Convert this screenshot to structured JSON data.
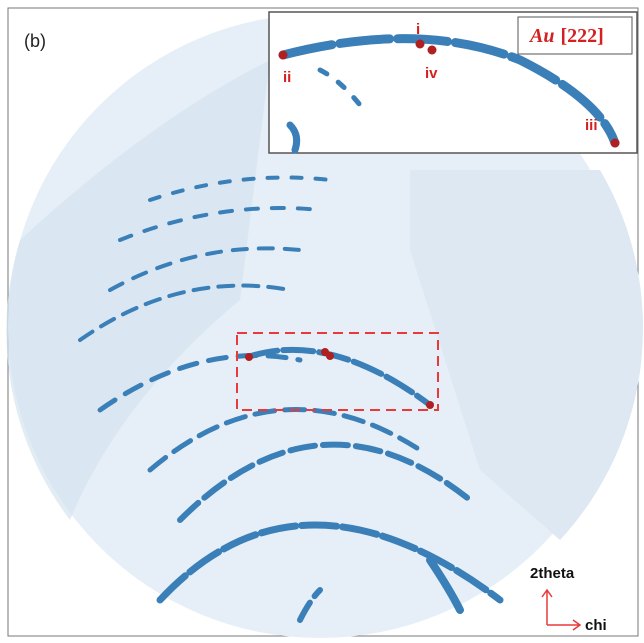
{
  "panel_label": "(b)",
  "inset": {
    "element": "Au",
    "reflection": "[222]",
    "points": [
      "i",
      "ii",
      "iii",
      "iv"
    ]
  },
  "axes": {
    "vertical": "2theta",
    "horizontal": "chi"
  }
}
